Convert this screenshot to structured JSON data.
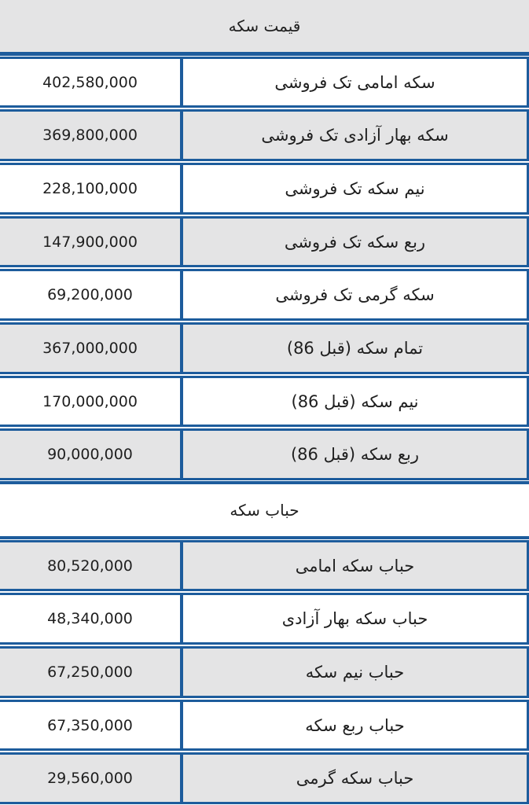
{
  "title": "قیمت سکه",
  "section_title": "حباب سکه",
  "rows": [
    {
      "label": "سکه امامی تک فروشی",
      "value": "402,580,000"
    },
    {
      "label": "سکه بهار آزادی تک فروشی",
      "value": "369,800,000"
    },
    {
      "label": "نیم سکه تک فروشی",
      "value": "228,100,000"
    },
    {
      "label": "ربع سکه تک فروشی",
      "value": "147,900,000"
    },
    {
      "label": "سکه گرمی تک فروشی",
      "value": "69,200,000"
    },
    {
      "label": "تمام سکه (قبل 86)",
      "value": "367,000,000"
    },
    {
      "label": "نیم سکه (قبل 86)",
      "value": "170,000,000"
    },
    {
      "label": "ربع سکه (قبل 86)",
      "value": "90,000,000"
    },
    {
      "label": "حباب سکه امامی",
      "value": "80,520,000"
    },
    {
      "label": "حباب سکه بهار آزادی",
      "value": "48,340,000"
    },
    {
      "label": "حباب نیم سکه",
      "value": "67,250,000"
    },
    {
      "label": "حباب ربع سکه",
      "value": "67,350,000"
    },
    {
      "label": "حباب سکه گرمی",
      "value": "29,560,000"
    }
  ],
  "colors": {
    "border": "#1d5c9c",
    "row_alt_bg": "#e4e4e5",
    "row_bg": "#ffffff",
    "text": "#1f1f1f"
  }
}
